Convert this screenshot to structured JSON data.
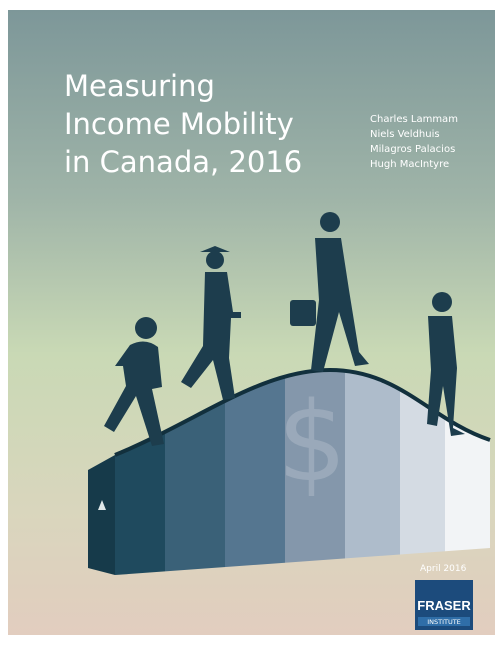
{
  "cover": {
    "title_lines": [
      "Measuring",
      "Income Mobility",
      "in Canada, 2016"
    ],
    "authors": [
      "Charles Lammam",
      "Niels Veldhuis",
      "Milagros Palacios",
      "Hugh MacIntyre"
    ],
    "date": "April 2016",
    "logo": {
      "name": "FRASER",
      "subtitle": "INSTITUTE"
    }
  }
}
